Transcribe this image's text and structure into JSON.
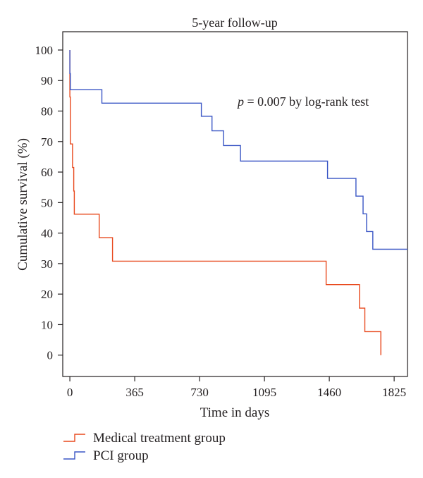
{
  "chart_data": {
    "type": "line",
    "step": true,
    "title": "5-year follow-up",
    "xlabel": "Time in days",
    "ylabel": "Cumulative survival (%)",
    "xlim": [
      -40,
      1900
    ],
    "ylim": [
      -7,
      106
    ],
    "xticks": [
      0,
      365,
      730,
      1095,
      1460,
      1825
    ],
    "yticks": [
      0,
      10,
      20,
      30,
      40,
      50,
      60,
      70,
      80,
      90,
      100
    ],
    "grid": false,
    "legend_position": "bottom-left, below plot",
    "annotation": {
      "italic": "p",
      "rest": " = 0.007 by log-rank test",
      "x": 870,
      "y": 83
    },
    "series": [
      {
        "name": "Medical treatment group",
        "color": "#e8491d",
        "x": [
          0,
          0,
          0,
          3,
          3,
          15,
          15,
          22,
          22,
          25,
          25,
          165,
          165,
          240,
          240,
          1442,
          1442,
          1630,
          1630,
          1660,
          1660,
          1750,
          1750
        ],
        "y": [
          100,
          92.3,
          84.6,
          84.6,
          69.2,
          69.2,
          61.5,
          61.5,
          53.8,
          53.8,
          46.2,
          46.2,
          38.5,
          38.5,
          30.8,
          30.8,
          23.1,
          23.1,
          15.4,
          15.4,
          7.7,
          7.7,
          0
        ]
      },
      {
        "name": "PCI group",
        "color": "#3a56c5",
        "x": [
          0,
          0,
          0,
          3,
          3,
          180,
          180,
          740,
          740,
          800,
          800,
          865,
          865,
          960,
          960,
          1450,
          1450,
          1610,
          1610,
          1650,
          1650,
          1670,
          1670,
          1705,
          1705,
          1900
        ],
        "y": [
          100,
          92.3,
          92.3,
          92.3,
          87,
          87,
          82.6,
          82.6,
          78.3,
          78.3,
          73.5,
          73.5,
          68.7,
          68.7,
          63.6,
          63.6,
          57.9,
          57.9,
          52.1,
          52.1,
          46.3,
          46.3,
          40.5,
          40.5,
          34.7,
          34.7
        ]
      }
    ]
  }
}
